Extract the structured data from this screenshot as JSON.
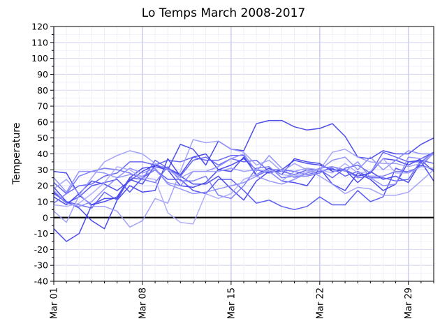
{
  "chart_data": {
    "type": "line",
    "title": "Lo Temps March 2008-2017",
    "xlabel": "",
    "ylabel": "Temperature",
    "x": [
      1,
      2,
      3,
      4,
      5,
      6,
      7,
      8,
      9,
      10,
      11,
      12,
      13,
      14,
      15,
      16,
      17,
      18,
      19,
      20,
      21,
      22,
      23,
      24,
      25,
      26,
      27,
      28,
      29,
      30,
      31
    ],
    "x_tick_values": [
      1,
      8,
      15,
      22,
      29
    ],
    "x_tick_labels": [
      "Mar 01",
      "Mar 08",
      "Mar 15",
      "Mar 22",
      "Mar 29"
    ],
    "xlim": [
      1,
      31
    ],
    "ylim": [
      -40,
      120
    ],
    "y_ticks": [
      -40,
      -30,
      -20,
      -10,
      0,
      10,
      20,
      30,
      40,
      50,
      60,
      70,
      80,
      90,
      100,
      110,
      120
    ],
    "grid": true,
    "zero_line": true,
    "series": [
      {
        "values": [
          29,
          28,
          14,
          8,
          12,
          12,
          24,
          21,
          33,
          30,
          46,
          43,
          33,
          48,
          43,
          42,
          59,
          61,
          61,
          57,
          55,
          56,
          59,
          51,
          38,
          37,
          42,
          40,
          40,
          46,
          50
        ],
        "color": "#3a3ae8"
      },
      {
        "values": [
          13,
          8,
          15,
          23,
          21,
          17,
          23,
          29,
          33,
          31,
          27,
          38,
          40,
          30,
          33,
          37,
          30,
          28,
          30,
          36,
          34,
          33,
          30,
          30,
          26,
          28,
          37,
          36,
          33,
          37,
          41
        ],
        "color": "#3a3ae8"
      },
      {
        "values": [
          -7,
          -15,
          -10,
          8,
          10,
          13,
          25,
          31,
          32,
          30,
          20,
          19,
          22,
          30,
          29,
          38,
          27,
          31,
          27,
          37,
          35,
          34,
          29,
          30,
          22,
          29,
          24,
          26,
          22,
          35,
          23
        ],
        "color": "#3a3ae8"
      },
      {
        "values": [
          19,
          10,
          6,
          -2,
          -7,
          11,
          20,
          16,
          17,
          37,
          26,
          21,
          21,
          26,
          18,
          11,
          23,
          29,
          23,
          22,
          20,
          31,
          21,
          17,
          28,
          24,
          17,
          21,
          35,
          36,
          29
        ],
        "color": "#3a3ae8"
      },
      {
        "values": [
          16,
          9,
          13,
          20,
          22,
          24,
          16,
          25,
          30,
          24,
          24,
          17,
          15,
          24,
          24,
          17,
          9,
          11,
          7,
          5,
          7,
          13,
          8,
          8,
          17,
          10,
          13,
          31,
          28,
          33,
          30
        ],
        "color": "#4a4af0"
      },
      {
        "values": [
          15,
          10,
          8,
          6,
          16,
          11,
          25,
          24,
          36,
          31,
          26,
          36,
          38,
          33,
          37,
          35,
          36,
          29,
          29,
          27,
          30,
          30,
          25,
          31,
          33,
          28,
          41,
          38,
          35,
          35,
          41
        ],
        "color": "#5a5af2"
      },
      {
        "values": [
          22,
          15,
          20,
          21,
          26,
          28,
          35,
          35,
          33,
          36,
          35,
          38,
          36,
          36,
          39,
          39,
          26,
          30,
          30,
          29,
          27,
          29,
          31,
          26,
          29,
          25,
          25,
          23,
          24,
          36,
          34
        ],
        "color": "#5a5af2"
      },
      {
        "values": [
          9,
          15,
          26,
          29,
          31,
          30,
          28,
          24,
          22,
          32,
          23,
          23,
          26,
          14,
          12,
          20,
          31,
          32,
          25,
          26,
          26,
          28,
          32,
          30,
          25,
          26,
          26,
          29,
          29,
          32,
          41
        ],
        "color": "#7070f4"
      },
      {
        "values": [
          25,
          16,
          29,
          29,
          28,
          25,
          27,
          26,
          30,
          22,
          20,
          29,
          29,
          32,
          37,
          40,
          29,
          39,
          31,
          25,
          28,
          30,
          36,
          38,
          30,
          38,
          30,
          36,
          42,
          40,
          40
        ],
        "color": "#8a8af8"
      },
      {
        "values": [
          17,
          9,
          7,
          10,
          18,
          25,
          31,
          28,
          31,
          21,
          18,
          15,
          16,
          18,
          20,
          22,
          26,
          23,
          21,
          24,
          28,
          31,
          32,
          29,
          35,
          25,
          20,
          21,
          38,
          37,
          40
        ],
        "color": "#8a8af8"
      },
      {
        "values": [
          18,
          24,
          15,
          7,
          7,
          4,
          -6,
          -2,
          12,
          9,
          29,
          49,
          47,
          48,
          43,
          41,
          33,
          36,
          29,
          34,
          30,
          26,
          21,
          15,
          19,
          18,
          14,
          14,
          16,
          23,
          30
        ],
        "color": "#9a9afa"
      },
      {
        "values": [
          4,
          -3,
          14,
          25,
          35,
          39,
          42,
          40,
          34,
          30,
          25,
          29,
          29,
          29,
          31,
          29,
          30,
          29,
          23,
          29,
          31,
          30,
          41,
          43,
          38,
          35,
          34,
          34,
          32,
          34,
          40
        ],
        "color": "#9a9afa"
      },
      {
        "values": [
          8,
          7,
          9,
          15,
          22,
          32,
          30,
          25,
          24,
          3,
          -3,
          -4,
          15,
          12,
          15,
          24,
          27,
          30,
          27,
          26,
          29,
          30,
          28,
          34,
          28,
          29,
          37,
          28,
          28,
          32,
          31
        ],
        "color": "#a8a8fb"
      }
    ]
  }
}
